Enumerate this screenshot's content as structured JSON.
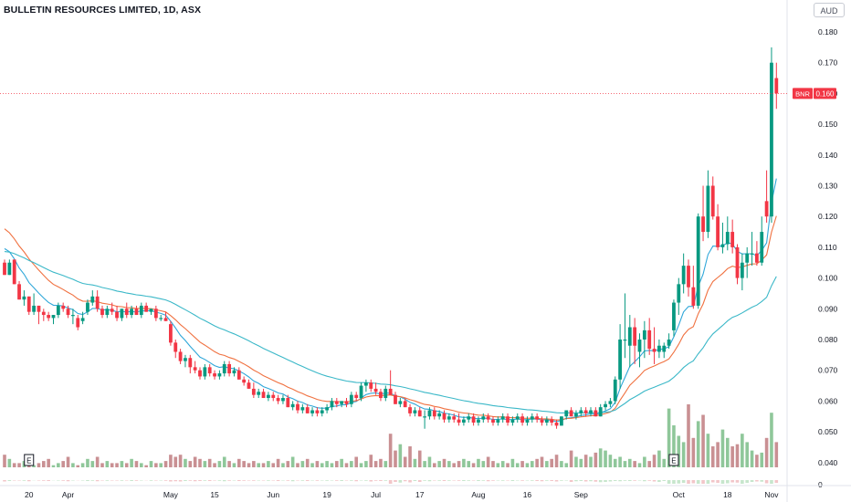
{
  "header": {
    "title": "BULLETIN RESOURCES LIMITED, 1D, ASX",
    "currency": "AUD"
  },
  "price_label": {
    "symbol": "BNR",
    "value": "0.160",
    "color": "#f23645"
  },
  "colors": {
    "up": "#089981",
    "down": "#f23645",
    "vol_up": "#8fc79a",
    "vol_down": "#c99093",
    "ma_fast": "#2fa7d9",
    "ma_mid": "#f07140",
    "ma_slow": "#3bb8c8"
  },
  "chart_data": {
    "type": "candlestick",
    "yaxis": {
      "ticks": [
        "0.180",
        "0.170",
        "0.160",
        "0.150",
        "0.140",
        "0.130",
        "0.120",
        "0.110",
        "0.100",
        "0.090",
        "0.080",
        "0.070",
        "0.060",
        "0.050",
        "0.040"
      ],
      "volume_tick": "0"
    },
    "xaxis": {
      "ticks": [
        {
          "label": "20",
          "day": 5
        },
        {
          "label": "Apr",
          "day": 13
        },
        {
          "label": "May",
          "day": 34
        },
        {
          "label": "15",
          "day": 43
        },
        {
          "label": "Jun",
          "day": 55
        },
        {
          "label": "19",
          "day": 66
        },
        {
          "label": "Jul",
          "day": 76
        },
        {
          "label": "17",
          "day": 85
        },
        {
          "label": "Aug",
          "day": 97
        },
        {
          "label": "16",
          "day": 107
        },
        {
          "label": "Sep",
          "day": 118
        },
        {
          "label": "Oct",
          "day": 138
        },
        {
          "label": "18",
          "day": 148
        },
        {
          "label": "Nov",
          "day": 157
        }
      ]
    },
    "events": [
      {
        "label": "E",
        "day": 5
      },
      {
        "label": "E",
        "day": 137
      }
    ],
    "last_price": 0.16,
    "candles": [
      [
        0.105,
        0.106,
        0.101,
        0.101
      ],
      [
        0.101,
        0.106,
        0.101,
        0.105
      ],
      [
        0.106,
        0.106,
        0.098,
        0.098
      ],
      [
        0.098,
        0.099,
        0.093,
        0.093
      ],
      [
        0.093,
        0.096,
        0.091,
        0.094
      ],
      [
        0.094,
        0.094,
        0.088,
        0.089
      ],
      [
        0.089,
        0.095,
        0.088,
        0.091
      ],
      [
        0.091,
        0.091,
        0.085,
        0.089
      ],
      [
        0.089,
        0.09,
        0.086,
        0.088
      ],
      [
        0.088,
        0.089,
        0.086,
        0.087
      ],
      [
        0.087,
        0.088,
        0.085,
        0.088
      ],
      [
        0.088,
        0.092,
        0.087,
        0.091
      ],
      [
        0.091,
        0.092,
        0.089,
        0.09
      ],
      [
        0.09,
        0.091,
        0.087,
        0.088
      ],
      [
        0.088,
        0.09,
        0.085,
        0.088
      ],
      [
        0.087,
        0.088,
        0.083,
        0.084
      ],
      [
        0.086,
        0.089,
        0.085,
        0.087
      ],
      [
        0.089,
        0.093,
        0.088,
        0.092
      ],
      [
        0.092,
        0.096,
        0.091,
        0.094
      ],
      [
        0.094,
        0.096,
        0.089,
        0.09
      ],
      [
        0.09,
        0.091,
        0.087,
        0.088
      ],
      [
        0.088,
        0.091,
        0.087,
        0.09
      ],
      [
        0.09,
        0.092,
        0.088,
        0.089
      ],
      [
        0.089,
        0.091,
        0.086,
        0.087
      ],
      [
        0.087,
        0.09,
        0.086,
        0.09
      ],
      [
        0.09,
        0.092,
        0.087,
        0.088
      ],
      [
        0.088,
        0.091,
        0.087,
        0.09
      ],
      [
        0.09,
        0.091,
        0.088,
        0.088
      ],
      [
        0.088,
        0.092,
        0.087,
        0.091
      ],
      [
        0.091,
        0.092,
        0.089,
        0.089
      ],
      [
        0.089,
        0.09,
        0.088,
        0.09
      ],
      [
        0.09,
        0.091,
        0.086,
        0.087
      ],
      [
        0.087,
        0.088,
        0.086,
        0.087
      ],
      [
        0.087,
        0.089,
        0.086,
        0.086
      ],
      [
        0.085,
        0.086,
        0.078,
        0.079
      ],
      [
        0.079,
        0.08,
        0.074,
        0.076
      ],
      [
        0.076,
        0.077,
        0.072,
        0.073
      ],
      [
        0.073,
        0.075,
        0.071,
        0.074
      ],
      [
        0.074,
        0.075,
        0.069,
        0.071
      ],
      [
        0.071,
        0.073,
        0.069,
        0.07
      ],
      [
        0.07,
        0.071,
        0.067,
        0.068
      ],
      [
        0.068,
        0.072,
        0.067,
        0.071
      ],
      [
        0.071,
        0.072,
        0.068,
        0.069
      ],
      [
        0.069,
        0.07,
        0.067,
        0.068
      ],
      [
        0.068,
        0.07,
        0.067,
        0.069
      ],
      [
        0.069,
        0.073,
        0.068,
        0.072
      ],
      [
        0.072,
        0.073,
        0.068,
        0.069
      ],
      [
        0.069,
        0.071,
        0.068,
        0.07
      ],
      [
        0.07,
        0.071,
        0.067,
        0.067
      ],
      [
        0.067,
        0.068,
        0.065,
        0.066
      ],
      [
        0.066,
        0.067,
        0.064,
        0.064
      ],
      [
        0.064,
        0.066,
        0.061,
        0.062
      ],
      [
        0.062,
        0.064,
        0.061,
        0.063
      ],
      [
        0.063,
        0.064,
        0.061,
        0.061
      ],
      [
        0.061,
        0.063,
        0.06,
        0.062
      ],
      [
        0.062,
        0.063,
        0.06,
        0.061
      ],
      [
        0.061,
        0.062,
        0.059,
        0.06
      ],
      [
        0.06,
        0.062,
        0.059,
        0.061
      ],
      [
        0.061,
        0.062,
        0.058,
        0.058
      ],
      [
        0.058,
        0.06,
        0.057,
        0.059
      ],
      [
        0.059,
        0.06,
        0.056,
        0.057
      ],
      [
        0.057,
        0.059,
        0.056,
        0.058
      ],
      [
        0.058,
        0.059,
        0.056,
        0.056
      ],
      [
        0.056,
        0.058,
        0.055,
        0.057
      ],
      [
        0.057,
        0.058,
        0.055,
        0.056
      ],
      [
        0.056,
        0.058,
        0.055,
        0.057
      ],
      [
        0.057,
        0.059,
        0.056,
        0.058
      ],
      [
        0.058,
        0.061,
        0.057,
        0.06
      ],
      [
        0.06,
        0.061,
        0.058,
        0.059
      ],
      [
        0.059,
        0.06,
        0.058,
        0.06
      ],
      [
        0.06,
        0.061,
        0.058,
        0.059
      ],
      [
        0.059,
        0.063,
        0.058,
        0.062
      ],
      [
        0.062,
        0.063,
        0.06,
        0.061
      ],
      [
        0.061,
        0.066,
        0.06,
        0.065
      ],
      [
        0.065,
        0.067,
        0.063,
        0.066
      ],
      [
        0.066,
        0.067,
        0.063,
        0.064
      ],
      [
        0.064,
        0.066,
        0.062,
        0.063
      ],
      [
        0.063,
        0.064,
        0.06,
        0.061
      ],
      [
        0.061,
        0.065,
        0.06,
        0.064
      ],
      [
        0.064,
        0.07,
        0.063,
        0.062
      ],
      [
        0.062,
        0.063,
        0.059,
        0.059
      ],
      [
        0.059,
        0.061,
        0.058,
        0.06
      ],
      [
        0.06,
        0.061,
        0.058,
        0.058
      ],
      [
        0.058,
        0.059,
        0.055,
        0.056
      ],
      [
        0.056,
        0.058,
        0.055,
        0.057
      ],
      [
        0.057,
        0.058,
        0.055,
        0.055
      ],
      [
        0.055,
        0.057,
        0.051,
        0.055
      ],
      [
        0.055,
        0.058,
        0.054,
        0.057
      ],
      [
        0.057,
        0.058,
        0.054,
        0.055
      ],
      [
        0.055,
        0.057,
        0.054,
        0.056
      ],
      [
        0.056,
        0.057,
        0.053,
        0.054
      ],
      [
        0.054,
        0.056,
        0.053,
        0.055
      ],
      [
        0.055,
        0.056,
        0.053,
        0.054
      ],
      [
        0.054,
        0.056,
        0.052,
        0.053
      ],
      [
        0.053,
        0.055,
        0.052,
        0.054
      ],
      [
        0.054,
        0.056,
        0.053,
        0.055
      ],
      [
        0.055,
        0.056,
        0.052,
        0.053
      ],
      [
        0.053,
        0.055,
        0.052,
        0.054
      ],
      [
        0.054,
        0.056,
        0.053,
        0.055
      ],
      [
        0.055,
        0.056,
        0.053,
        0.054
      ],
      [
        0.054,
        0.055,
        0.052,
        0.053
      ],
      [
        0.053,
        0.055,
        0.052,
        0.054
      ],
      [
        0.054,
        0.056,
        0.053,
        0.055
      ],
      [
        0.055,
        0.056,
        0.052,
        0.053
      ],
      [
        0.053,
        0.055,
        0.052,
        0.054
      ],
      [
        0.054,
        0.056,
        0.053,
        0.055
      ],
      [
        0.055,
        0.056,
        0.052,
        0.053
      ],
      [
        0.053,
        0.055,
        0.052,
        0.054
      ],
      [
        0.054,
        0.056,
        0.053,
        0.055
      ],
      [
        0.055,
        0.056,
        0.053,
        0.054
      ],
      [
        0.054,
        0.055,
        0.052,
        0.053
      ],
      [
        0.053,
        0.055,
        0.052,
        0.054
      ],
      [
        0.054,
        0.055,
        0.052,
        0.053
      ],
      [
        0.053,
        0.054,
        0.051,
        0.052
      ],
      [
        0.052,
        0.055,
        0.052,
        0.055
      ],
      [
        0.055,
        0.057,
        0.054,
        0.057
      ],
      [
        0.057,
        0.058,
        0.055,
        0.055
      ],
      [
        0.055,
        0.057,
        0.054,
        0.056
      ],
      [
        0.056,
        0.058,
        0.055,
        0.057
      ],
      [
        0.057,
        0.058,
        0.055,
        0.056
      ],
      [
        0.056,
        0.058,
        0.055,
        0.057
      ],
      [
        0.057,
        0.058,
        0.055,
        0.055
      ],
      [
        0.055,
        0.059,
        0.055,
        0.058
      ],
      [
        0.058,
        0.06,
        0.057,
        0.059
      ],
      [
        0.059,
        0.061,
        0.058,
        0.06
      ],
      [
        0.06,
        0.068,
        0.059,
        0.067
      ],
      [
        0.067,
        0.085,
        0.064,
        0.08
      ],
      [
        0.08,
        0.095,
        0.074,
        0.08
      ],
      [
        0.078,
        0.088,
        0.071,
        0.084
      ],
      [
        0.084,
        0.087,
        0.072,
        0.078
      ],
      [
        0.076,
        0.082,
        0.071,
        0.08
      ],
      [
        0.08,
        0.086,
        0.074,
        0.083
      ],
      [
        0.083,
        0.087,
        0.075,
        0.077
      ],
      [
        0.077,
        0.084,
        0.072,
        0.076
      ],
      [
        0.076,
        0.08,
        0.074,
        0.078
      ],
      [
        0.076,
        0.079,
        0.074,
        0.078
      ],
      [
        0.078,
        0.082,
        0.077,
        0.08
      ],
      [
        0.083,
        0.093,
        0.081,
        0.092
      ],
      [
        0.092,
        0.1,
        0.088,
        0.098
      ],
      [
        0.098,
        0.108,
        0.095,
        0.104
      ],
      [
        0.104,
        0.106,
        0.094,
        0.097
      ],
      [
        0.097,
        0.104,
        0.09,
        0.091
      ],
      [
        0.091,
        0.121,
        0.09,
        0.12
      ],
      [
        0.12,
        0.13,
        0.112,
        0.115
      ],
      [
        0.115,
        0.135,
        0.113,
        0.13
      ],
      [
        0.13,
        0.133,
        0.119,
        0.12
      ],
      [
        0.12,
        0.124,
        0.109,
        0.11
      ],
      [
        0.11,
        0.118,
        0.108,
        0.111
      ],
      [
        0.111,
        0.12,
        0.109,
        0.115
      ],
      [
        0.115,
        0.119,
        0.108,
        0.11
      ],
      [
        0.11,
        0.111,
        0.098,
        0.1
      ],
      [
        0.1,
        0.108,
        0.096,
        0.105
      ],
      [
        0.105,
        0.11,
        0.1,
        0.108
      ],
      [
        0.108,
        0.115,
        0.104,
        0.108
      ],
      [
        0.108,
        0.112,
        0.104,
        0.105
      ],
      [
        0.105,
        0.12,
        0.104,
        0.115
      ],
      [
        0.125,
        0.135,
        0.118,
        0.12
      ],
      [
        0.12,
        0.175,
        0.118,
        0.17
      ],
      [
        0.165,
        0.17,
        0.155,
        0.16
      ]
    ],
    "volume": [
      6,
      4,
      2,
      2,
      3,
      5,
      1,
      2,
      3,
      4,
      1,
      2,
      3,
      5,
      2,
      1,
      2,
      4,
      3,
      5,
      2,
      3,
      2,
      2,
      3,
      2,
      4,
      3,
      2,
      1,
      3,
      2,
      2,
      3,
      6,
      5,
      6,
      4,
      3,
      5,
      4,
      3,
      4,
      2,
      3,
      5,
      3,
      2,
      4,
      3,
      2,
      3,
      2,
      2,
      3,
      2,
      4,
      2,
      3,
      5,
      2,
      3,
      4,
      2,
      3,
      2,
      3,
      2,
      3,
      4,
      2,
      3,
      5,
      2,
      3,
      6,
      3,
      4,
      3,
      16,
      8,
      11,
      5,
      10,
      4,
      8,
      3,
      5,
      2,
      3,
      4,
      3,
      2,
      3,
      4,
      3,
      2,
      4,
      3,
      5,
      3,
      2,
      3,
      2,
      4,
      2,
      3,
      2,
      3,
      4,
      5,
      3,
      4,
      6,
      3,
      2,
      8,
      5,
      4,
      6,
      5,
      7,
      9,
      8,
      6,
      4,
      5,
      3,
      4,
      3,
      2,
      5,
      3,
      6,
      8,
      4,
      28,
      20,
      15,
      12,
      30,
      14,
      22,
      25,
      16,
      10,
      12,
      18,
      14,
      10,
      11,
      16,
      12,
      8,
      6,
      7,
      14,
      26,
      12
    ]
  }
}
